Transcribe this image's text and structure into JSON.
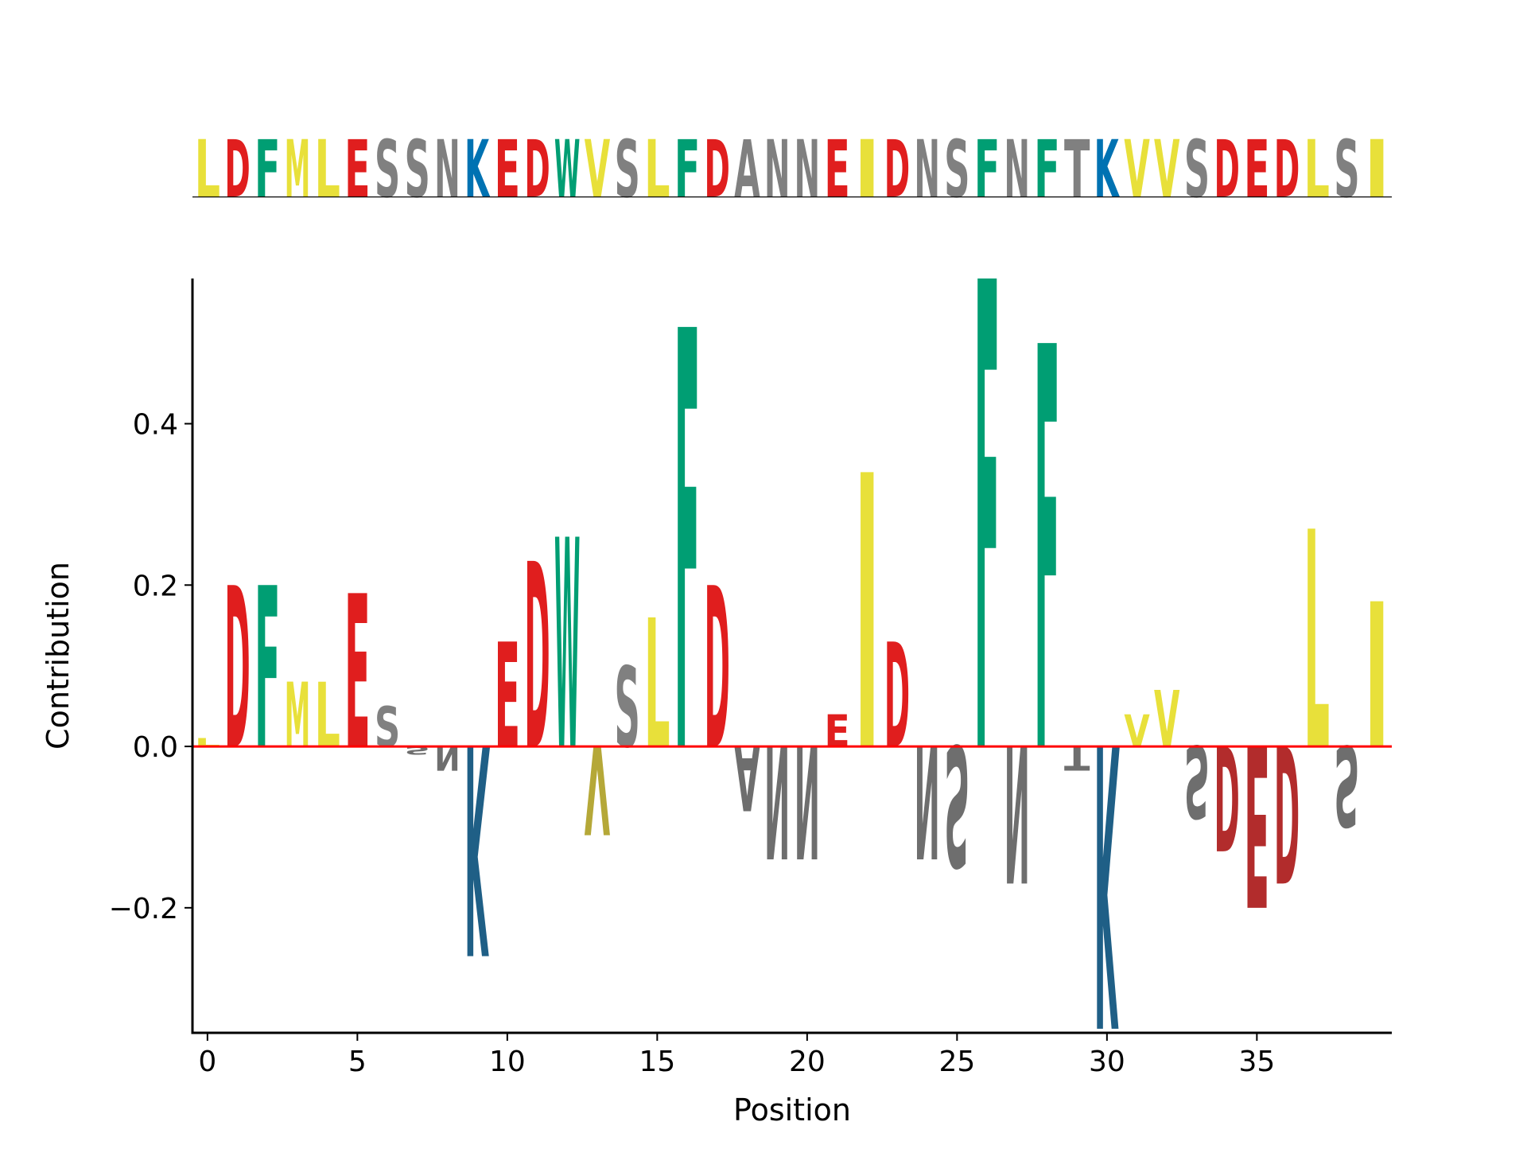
{
  "chart_data": {
    "type": "sequence-logo",
    "sequence": [
      "L",
      "D",
      "F",
      "M",
      "L",
      "E",
      "S",
      "S",
      "N",
      "K",
      "E",
      "D",
      "W",
      "V",
      "S",
      "L",
      "F",
      "D",
      "A",
      "N",
      "N",
      "E",
      "I",
      "D",
      "N",
      "S",
      "F",
      "N",
      "F",
      "T",
      "K",
      "V",
      "V",
      "S",
      "D",
      "E",
      "D",
      "L",
      "S",
      "I"
    ],
    "contributions": [
      0.01,
      0.2,
      0.2,
      0.08,
      0.08,
      0.19,
      0.05,
      -0.01,
      -0.03,
      -0.26,
      0.13,
      0.23,
      0.26,
      -0.11,
      0.1,
      0.16,
      0.52,
      0.2,
      -0.08,
      -0.14,
      -0.14,
      0.04,
      0.34,
      0.13,
      -0.14,
      -0.15,
      0.58,
      -0.17,
      0.5,
      -0.03,
      -0.35,
      0.04,
      0.07,
      -0.09,
      -0.13,
      -0.2,
      -0.17,
      0.27,
      -0.1,
      0.18
    ],
    "xlabel": "Position",
    "ylabel": "Contribution",
    "xlim": [
      -0.5,
      39.5
    ],
    "ylim": [
      -0.355,
      0.58
    ],
    "xticks": [
      0,
      5,
      10,
      15,
      20,
      25,
      30,
      35
    ],
    "xtick_labels": [
      "0",
      "5",
      "10",
      "15",
      "20",
      "25",
      "30",
      "35"
    ],
    "yticks": [
      -0.2,
      0.0,
      0.2,
      0.4
    ],
    "ytick_labels": [
      "−0.2",
      "0.0",
      "0.2",
      "0.4"
    ],
    "baseline_color": "#ff0000",
    "colors": {
      "hydrophobic": "#e8e03a",
      "acidic": "#e01e1e",
      "aromatic": "#009e73",
      "polar": "#808080",
      "basic": "#0072b2"
    },
    "negative_colors": {
      "hydrophobic": "#b5a838",
      "acidic": "#b22c2c",
      "aromatic": "#1f8a68",
      "polar": "#6e6e6e",
      "basic": "#1f5f86"
    },
    "residue_classes": {
      "L": "hydrophobic",
      "M": "hydrophobic",
      "V": "hydrophobic",
      "I": "hydrophobic",
      "A": "polar",
      "D": "acidic",
      "E": "acidic",
      "F": "aromatic",
      "W": "aromatic",
      "S": "polar",
      "N": "polar",
      "T": "polar",
      "K": "basic"
    }
  }
}
